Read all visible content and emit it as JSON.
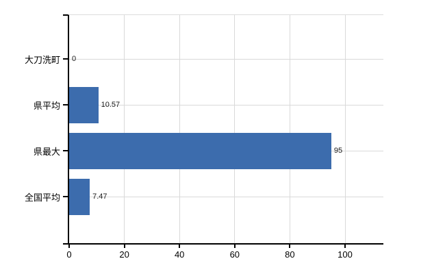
{
  "chart_data": {
    "type": "bar",
    "orientation": "horizontal",
    "title": "",
    "categories": [
      "大刀洗町",
      "県平均",
      "県最大",
      "全国平均"
    ],
    "values": [
      0,
      10.57,
      95,
      7.47
    ],
    "value_labels": [
      "0",
      "10.57",
      "95",
      "7.47"
    ],
    "x_tick_values": [
      0,
      20,
      40,
      60,
      80,
      100
    ],
    "x_tick_labels": [
      "0",
      "20",
      "40",
      "60",
      "80",
      "100"
    ],
    "xlim": [
      0,
      114
    ],
    "grid": true,
    "legend": "none",
    "bar_color": "#3c6cad",
    "grid_color": "#d9d9d9",
    "axis_color": "#000000",
    "label_color": "#1a1a1a"
  }
}
